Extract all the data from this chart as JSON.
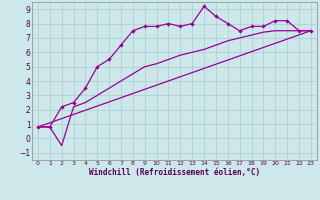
{
  "xlabel": "Windchill (Refroidissement éolien,°C)",
  "bg_color": "#cce8ea",
  "line_color": "#990099",
  "grid_color": "#aacccc",
  "xlim": [
    -0.5,
    23.5
  ],
  "ylim": [
    -1.5,
    9.5
  ],
  "xticks": [
    0,
    1,
    2,
    3,
    4,
    5,
    6,
    7,
    8,
    9,
    10,
    11,
    12,
    13,
    14,
    15,
    16,
    17,
    18,
    19,
    20,
    21,
    22,
    23
  ],
  "yticks": [
    -1,
    0,
    1,
    2,
    3,
    4,
    5,
    6,
    7,
    8,
    9
  ],
  "curve1_x": [
    0,
    1,
    2,
    3,
    4,
    5,
    6,
    7,
    8,
    9,
    10,
    11,
    12,
    13,
    14,
    15,
    16,
    17,
    18,
    19,
    20,
    21,
    22,
    23
  ],
  "curve1_y": [
    0.8,
    0.8,
    2.2,
    2.5,
    3.5,
    5.0,
    5.5,
    6.5,
    7.5,
    7.8,
    7.8,
    8.0,
    7.8,
    8.0,
    9.2,
    8.5,
    8.0,
    7.5,
    7.8,
    7.8,
    8.2,
    8.2,
    7.5,
    7.5
  ],
  "curve2_x": [
    0,
    1,
    2,
    3,
    4,
    5,
    6,
    7,
    8,
    9,
    10,
    11,
    12,
    13,
    14,
    15,
    16,
    17,
    18,
    19,
    20,
    21,
    22,
    23
  ],
  "curve2_y": [
    0.8,
    0.8,
    -0.5,
    2.2,
    2.5,
    3.0,
    3.5,
    4.0,
    4.5,
    5.0,
    5.2,
    5.5,
    5.8,
    6.0,
    6.2,
    6.5,
    6.8,
    7.0,
    7.2,
    7.4,
    7.5,
    7.5,
    7.5,
    7.5
  ],
  "curve3_x": [
    0,
    23
  ],
  "curve3_y": [
    0.8,
    7.5
  ]
}
